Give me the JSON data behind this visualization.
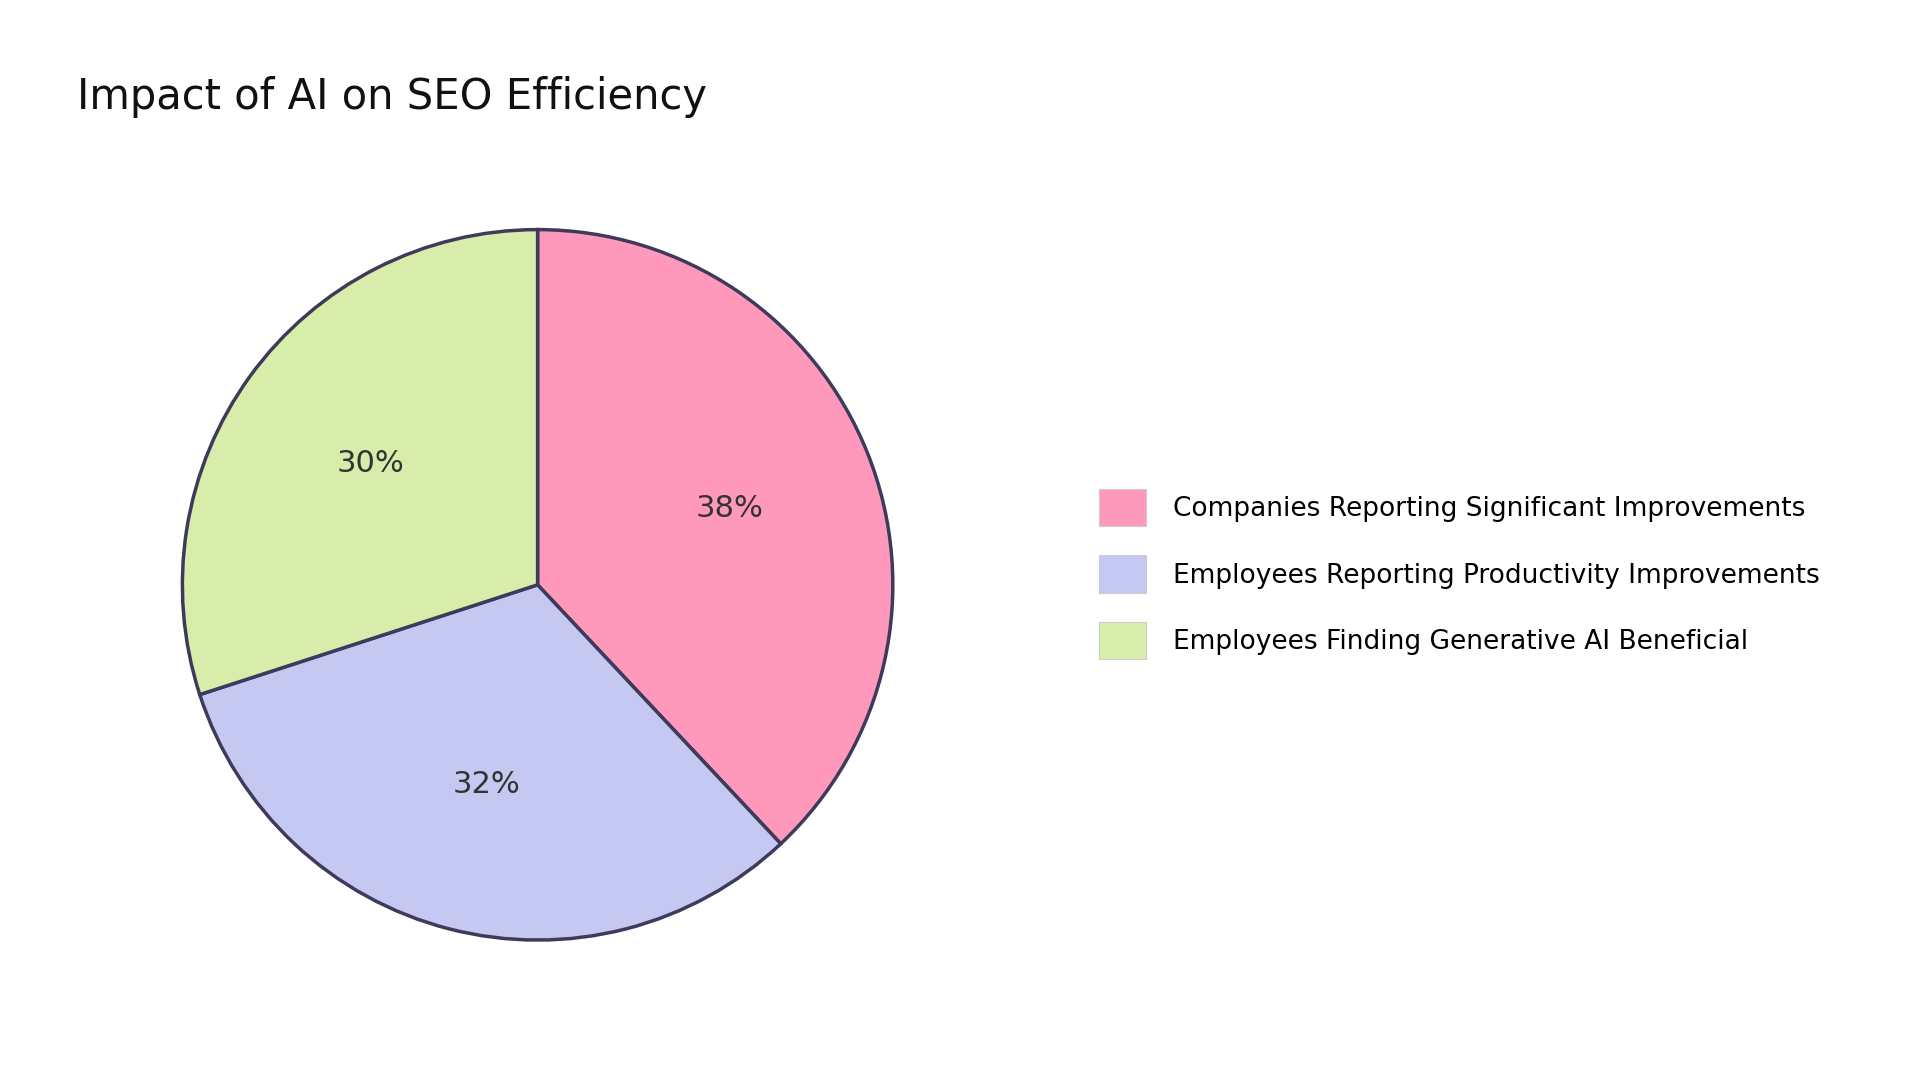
{
  "title": "Impact of AI on SEO Efficiency",
  "slices": [
    38,
    32,
    30
  ],
  "labels": [
    "38%",
    "32%",
    "30%"
  ],
  "colors": [
    "#FF99BB",
    "#C5C8F0",
    "#D8EDAA"
  ],
  "edge_color": "#3D3A5C",
  "legend_labels": [
    "Companies Reporting Significant Improvements",
    "Employees Reporting Productivity Improvements",
    "Employees Finding Generative AI Beneficial"
  ],
  "title_fontsize": 30,
  "label_fontsize": 22,
  "legend_fontsize": 19,
  "background_color": "#FFFFFF",
  "startangle": 90,
  "legend_box_colors": [
    "#FF99BB",
    "#C5C8F0",
    "#D8EDAA"
  ]
}
